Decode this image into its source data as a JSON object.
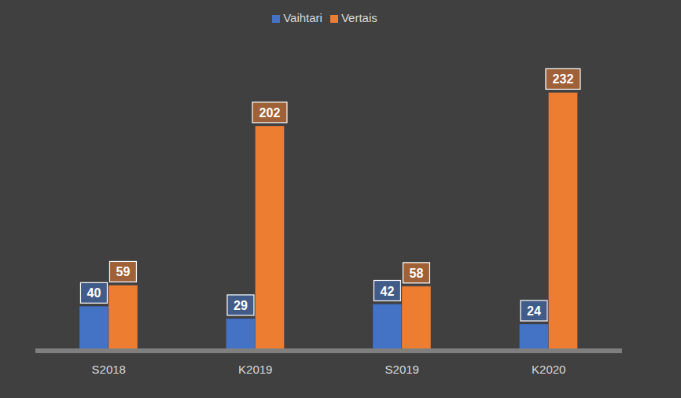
{
  "chart_data": {
    "type": "bar",
    "categories": [
      "S2018",
      "K2019",
      "S2019",
      "K2020"
    ],
    "series": [
      {
        "name": "Vaihtari",
        "color": "#4472c4",
        "values": [
          40,
          29,
          42,
          24
        ]
      },
      {
        "name": "Vertais",
        "color": "#ed7d31",
        "values": [
          59,
          202,
          58,
          232
        ]
      }
    ],
    "data_labels": true,
    "tick_labels": "x",
    "legend": "top"
  }
}
